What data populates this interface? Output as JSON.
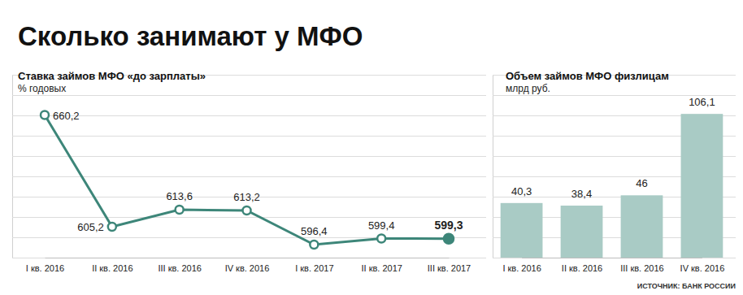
{
  "title": "Сколько занимают у МФО",
  "source": "ИСТОЧНИК: БАНК РОССИИ",
  "chart_data": [
    {
      "type": "line",
      "title": "Ставка займов МФО «до зарплаты»",
      "subtitle": "% годовых",
      "categories": [
        "I кв. 2016",
        "II кв. 2016",
        "III кв. 2016",
        "IV кв. 2016",
        "I кв. 2017",
        "II кв. 2017",
        "III кв. 2017"
      ],
      "values": [
        660.2,
        605.2,
        613.6,
        613.2,
        596.4,
        599.4,
        599.3
      ],
      "value_labels": [
        "660,2",
        "605,2",
        "613,6",
        "613,2",
        "596,4",
        "599,4",
        "599,3"
      ],
      "color": "#3d8679",
      "marker": "circle",
      "ylim": [
        590,
        680
      ],
      "yticks": [
        590,
        600,
        610,
        620,
        630,
        640,
        650,
        660,
        670,
        680
      ],
      "grid": true,
      "data_labels": true,
      "tick_labels": "x"
    },
    {
      "type": "bar",
      "title": "Объем займов МФО физлицам",
      "subtitle": "млрд руб.",
      "categories": [
        "I кв. 2016",
        "II кв. 2016",
        "III кв. 2016",
        "IV кв. 2016"
      ],
      "values": [
        40.3,
        38.4,
        46,
        106.1
      ],
      "value_labels": [
        "40,3",
        "38,4",
        "46",
        "106,1"
      ],
      "color": "#a9cbc5",
      "ylim": [
        0,
        135
      ],
      "yticks": [
        0,
        15,
        30,
        45,
        60,
        75,
        90,
        105,
        120,
        135
      ],
      "grid": true,
      "data_labels": true,
      "tick_labels": "x"
    }
  ]
}
